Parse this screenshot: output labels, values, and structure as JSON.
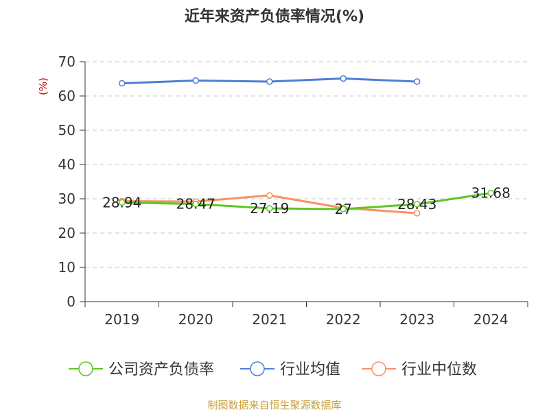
{
  "title": "近年来资产负债率情况(%)",
  "source": "制图数据来自恒生聚源数据库",
  "colors": {
    "company": "#5dc524",
    "industry_avg": "#4b7fd6",
    "industry_median": "#f5935f",
    "axis": "#333333",
    "grid": "#c8c8c8",
    "unit": "#cc0000"
  },
  "chart_data": {
    "type": "line",
    "title": "近年来资产负债率情况(%)",
    "ylabel": "(%)",
    "categories": [
      "2019",
      "2020",
      "2021",
      "2022",
      "2023",
      "2024"
    ],
    "ylim": [
      0,
      70
    ],
    "yticks": [
      0,
      10,
      20,
      30,
      40,
      50,
      60,
      70
    ],
    "grid": true,
    "legend_position": "bottom",
    "series": [
      {
        "key": "company",
        "name": "公司资产负债率",
        "values": [
          28.94,
          28.47,
          27.19,
          27,
          28.43,
          31.68
        ],
        "labels": [
          "28.94",
          "28.47",
          "27.19",
          "27",
          "28.43",
          "31.68"
        ]
      },
      {
        "key": "industry_avg",
        "name": "行业均值",
        "values": [
          63.7,
          64.5,
          64.2,
          65.1,
          64.2,
          null
        ]
      },
      {
        "key": "industry_median",
        "name": "行业中位数",
        "values": [
          29.3,
          29.2,
          31.0,
          27.3,
          25.8,
          null
        ]
      }
    ]
  }
}
